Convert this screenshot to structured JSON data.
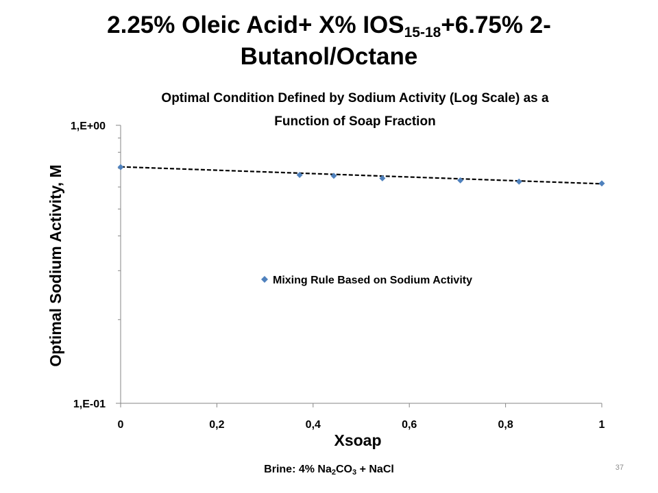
{
  "slide": {
    "title_a": "2.25% Oleic Acid+ X% IOS",
    "title_sub": "15-18",
    "title_b": "+6.75% 2-",
    "title_c": "Butanol/Octane",
    "footer_a": "Brine: 4% Na",
    "footer_sub1": "2",
    "footer_b": "CO",
    "footer_sub2": "3",
    "footer_c": " + NaCl",
    "page_number": "37"
  },
  "chart_data": {
    "type": "scatter",
    "title_line1": "Optimal Condition Defined by Sodium Activity (Log Scale) as a",
    "title_line2": "Function of Soap Fraction",
    "xlabel": "Xsoap",
    "ylabel": "Optimal Sodium Activity, M",
    "xlim": [
      0,
      1
    ],
    "ylim": [
      0.1,
      1
    ],
    "yscale": "log",
    "x_ticks": [
      0,
      0.2,
      0.4,
      0.6,
      0.8,
      1
    ],
    "x_tick_labels": [
      "0",
      "0,2",
      "0,4",
      "0,6",
      "0,8",
      "1"
    ],
    "y_ticks": [
      0.1,
      1
    ],
    "y_tick_labels": [
      "1,E-01",
      "1,E+00"
    ],
    "grid": false,
    "legend_position": "center-right",
    "series": [
      {
        "name": "Mixing Rule Based on Sodium Activity",
        "marker": "diamond",
        "color": "#4f81bd",
        "x": [
          0,
          0.372,
          0.443,
          0.544,
          0.706,
          0.828,
          1.0
        ],
        "y": [
          0.707,
          0.663,
          0.658,
          0.645,
          0.634,
          0.627,
          0.618
        ]
      }
    ],
    "trendline": {
      "style": "dashed",
      "color": "#000000",
      "x": [
        0,
        1
      ],
      "y": [
        0.709,
        0.616
      ]
    }
  }
}
